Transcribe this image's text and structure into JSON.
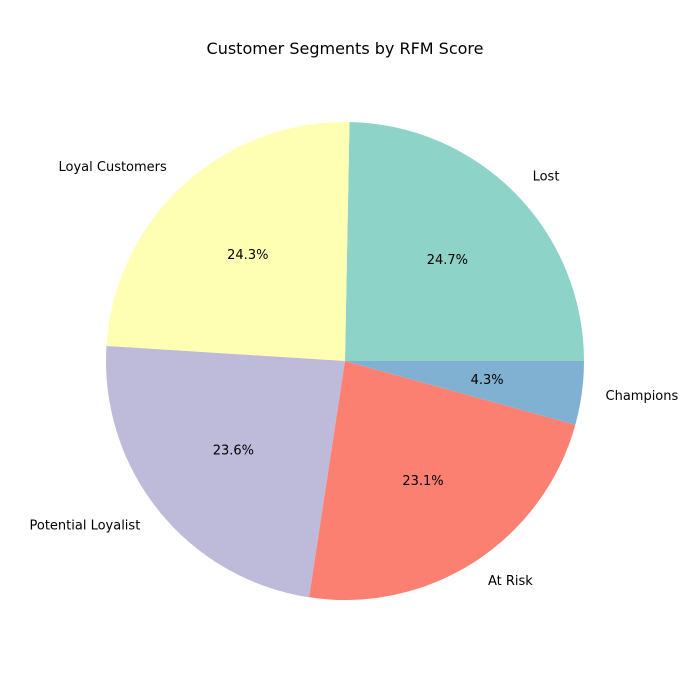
{
  "chart_data": {
    "type": "pie",
    "title": "Customer Segments by RFM Score",
    "slices": [
      {
        "label": "Lost",
        "percent": 24.7,
        "percent_label": "24.7%",
        "color": "#8dd3c7"
      },
      {
        "label": "Loyal Customers",
        "percent": 24.3,
        "percent_label": "24.3%",
        "color": "#ffffb3"
      },
      {
        "label": "Potential Loyalist",
        "percent": 23.6,
        "percent_label": "23.6%",
        "color": "#bebada"
      },
      {
        "label": "At Risk",
        "percent": 23.1,
        "percent_label": "23.1%",
        "color": "#fb8072"
      },
      {
        "label": "Champions",
        "percent": 4.3,
        "percent_label": "4.3%",
        "color": "#80b1d3"
      }
    ],
    "start_angle_deg": 0,
    "direction": "counterclockwise"
  }
}
